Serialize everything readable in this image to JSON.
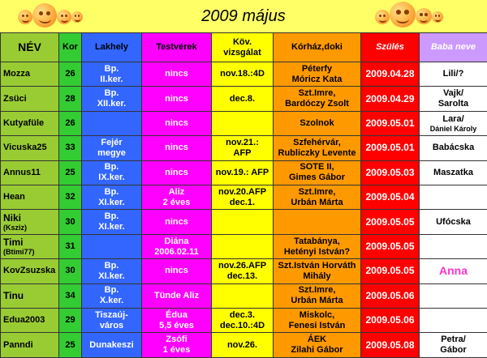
{
  "title": "2009 május",
  "headers": {
    "nev": "NÉV",
    "kor": "Kor",
    "lakhely": "Lakhely",
    "testverek": "Testvérek",
    "kov_line1": "Köv.",
    "kov_line2": "vizsgálat",
    "korhaz": "Kórház,doki",
    "szules": "Szülés",
    "baba": "Baba neve"
  },
  "rows": [
    {
      "nev": "Mozza",
      "nev_sub": "",
      "kor": "26",
      "lak1": "Bp.",
      "lak2": "II.ker.",
      "tes1": "nincs",
      "tes2": "",
      "kov1": "nov.18.:4D",
      "kov2": "",
      "kh1": "Péterfy",
      "kh2": "Móricz Kata",
      "szules": "2009.04.28",
      "baba1": "Lili/?",
      "baba2": ""
    },
    {
      "nev": "Zsüci",
      "nev_sub": "",
      "kor": "28",
      "lak1": "Bp.",
      "lak2": "XII.ker.",
      "tes1": "nincs",
      "tes2": "",
      "kov1": "dec.8.",
      "kov2": "",
      "kh1": "Szt.Imre,",
      "kh2": "Bardóczy Zsolt",
      "szules": "2009.04.29",
      "baba1": "Vajk/",
      "baba2": "Sarolta"
    },
    {
      "nev": "Kutyafüle",
      "nev_sub": "",
      "kor": "26",
      "lak1": "",
      "lak2": "",
      "tes1": "nincs",
      "tes2": "",
      "kov1": "",
      "kov2": "",
      "kh1": "Szolnok",
      "kh2": "",
      "szules": "2009.05.01",
      "baba1": "Lara/",
      "baba2": "Dániel Károly"
    },
    {
      "nev": "Vicuska25",
      "nev_sub": "",
      "kor": "33",
      "lak1": "Fejér",
      "lak2": "megye",
      "tes1": "nincs",
      "tes2": "",
      "kov1": "nov.21.:",
      "kov2": "AFP",
      "kh1": "Szfehérvár,",
      "kh2": "Rubliczky Levente",
      "szules": "2009.05.01",
      "baba1": "Babácska",
      "baba2": ""
    },
    {
      "nev": "Annus11",
      "nev_sub": "",
      "kor": "25",
      "lak1": "Bp.",
      "lak2": "IX.ker.",
      "tes1": "nincs",
      "tes2": "",
      "kov1": "nov.19.: AFP",
      "kov2": "",
      "kh1": "SOTE II,",
      "kh2": "Gimes Gábor",
      "szules": "2009.05.03",
      "baba1": "Maszatka",
      "baba2": ""
    },
    {
      "nev": "Hean",
      "nev_sub": "",
      "kor": "32",
      "lak1": "Bp.",
      "lak2": "XI.ker.",
      "tes1": "Aliz",
      "tes2": "2 éves",
      "kov1": "nov.20.AFP",
      "kov2": "dec.1.",
      "kh1": "Szt.Imre,",
      "kh2": "Urbán Márta",
      "szules": "2009.05.04",
      "baba1": "",
      "baba2": ""
    },
    {
      "nev": "Niki",
      "nev_sub": "(Ksziz)",
      "kor": "30",
      "lak1": "Bp.",
      "lak2": "XI.ker.",
      "tes1": "nincs",
      "tes2": "",
      "kov1": "",
      "kov2": "",
      "kh1": "",
      "kh2": "",
      "szules": "2009.05.05",
      "baba1": "Ufócska",
      "baba2": ""
    },
    {
      "nev": "Timi",
      "nev_sub": "(Btimi77)",
      "kor": "31",
      "lak1": "",
      "lak2": "",
      "tes1": "Diána",
      "tes2": "2006.02.11",
      "kov1": "",
      "kov2": "",
      "kh1": "Tatabánya,",
      "kh2": "Hetényi István?",
      "szules": "2009.05.05",
      "baba1": "",
      "baba2": ""
    },
    {
      "nev": "KovZsuzska",
      "nev_sub": "",
      "kor": "30",
      "lak1": "Bp.",
      "lak2": "XI.ker.",
      "tes1": "nincs",
      "tes2": "",
      "kov1": "nov.26.AFP",
      "kov2": "dec.13.",
      "kh1": "Szt.István Horváth",
      "kh2": "Mihály",
      "szules": "2009.05.05",
      "baba1": "Anna",
      "baba2": ""
    },
    {
      "nev": "Tinu",
      "nev_sub": "",
      "kor": "34",
      "lak1": "Bp.",
      "lak2": "X.ker.",
      "tes1": "Tünde Aliz",
      "tes2": "",
      "kov1": "",
      "kov2": "",
      "kh1": "Szt.Imre,",
      "kh2": "Urbán Márta",
      "szules": "2009.05.06",
      "baba1": "",
      "baba2": ""
    },
    {
      "nev": "Edua2003",
      "nev_sub": "",
      "kor": "29",
      "lak1": "Tiszaúj-",
      "lak2": "város",
      "tes1": "Édua",
      "tes2": "5,5 éves",
      "kov1": "dec.3.",
      "kov2": "dec.10.:4D",
      "kh1": "Miskolc,",
      "kh2": "Fenesi István",
      "szules": "2009.05.06",
      "baba1": "",
      "baba2": ""
    },
    {
      "nev": "Panndi",
      "nev_sub": "",
      "kor": "25",
      "lak1": "Dunakeszi",
      "lak2": "",
      "tes1": "Zsófi",
      "tes2": "1 éves",
      "kov1": "nov.26.",
      "kov2": "",
      "kh1": "ÁEK",
      "kh2": "Zilahi Gábor",
      "szules": "2009.05.08",
      "baba1": "Petra/",
      "baba2": "Gábor"
    }
  ]
}
